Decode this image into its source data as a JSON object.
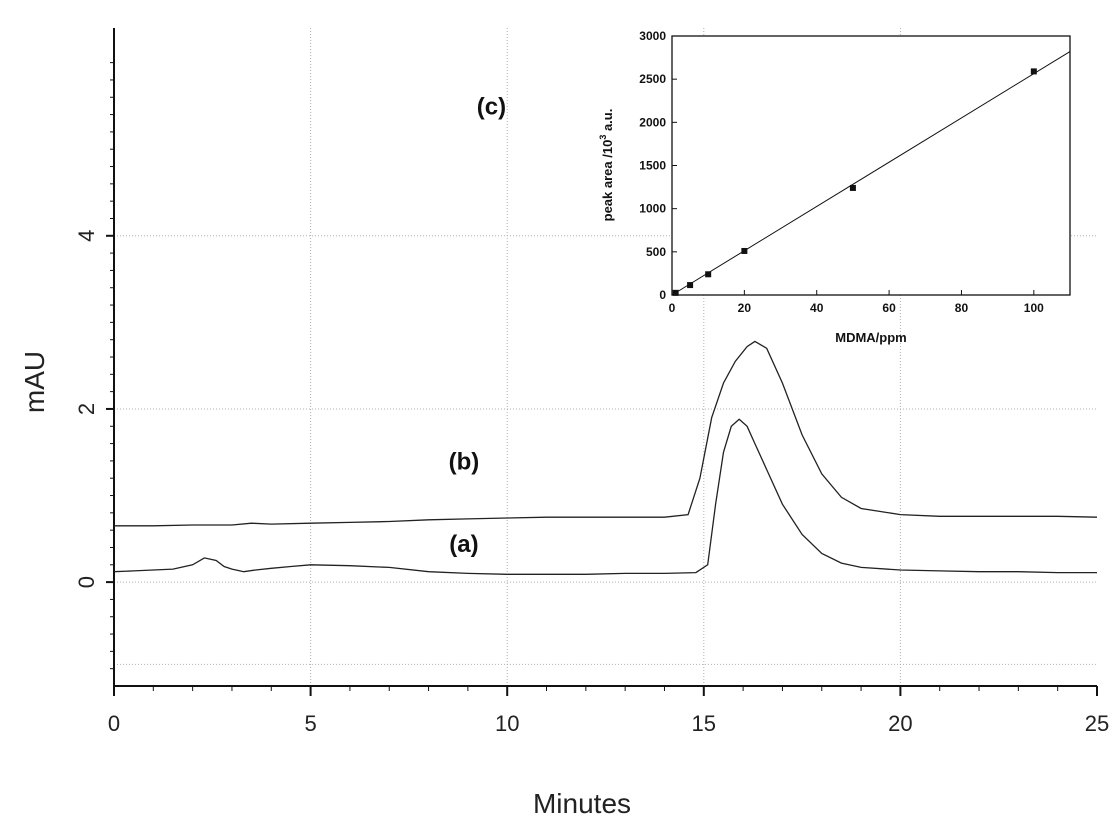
{
  "chart_data": [
    {
      "type": "line",
      "xlabel": "Minutes",
      "ylabel": "mAU",
      "xlim": [
        0,
        25
      ],
      "ylim": [
        -1.2,
        6.4
      ],
      "x_ticks": [
        0,
        5,
        10,
        15,
        20,
        25
      ],
      "x_tick_labels": [
        "0",
        "5",
        "10",
        "15",
        "20",
        "25"
      ],
      "y_ticks": [
        0,
        2,
        4
      ],
      "y_tick_labels": [
        "0",
        "2",
        "4"
      ],
      "grid": true,
      "trace_labels": [
        {
          "text": "(a)",
          "x": 8.9,
          "y": 0.35
        },
        {
          "text": "(b)",
          "x": 8.9,
          "y": 1.3
        },
        {
          "text": "(c)",
          "x": 9.6,
          "y": 5.4
        }
      ],
      "series": [
        {
          "name": "(a)",
          "x": [
            0,
            0.5,
            1,
            1.5,
            2,
            2.3,
            2.6,
            2.8,
            3.0,
            3.3,
            3.6,
            4.0,
            4.5,
            5.0,
            6.0,
            7.0,
            8.0,
            9.0,
            10.0,
            11.0,
            12.0,
            13.0,
            14.0,
            14.8,
            15.1,
            15.3,
            15.5,
            15.7,
            15.9,
            16.1,
            16.3,
            16.6,
            17.0,
            17.5,
            18.0,
            18.5,
            19.0,
            20.0,
            21.0,
            22.0,
            23.0,
            24.0,
            25.0
          ],
          "y": [
            0.12,
            0.13,
            0.14,
            0.15,
            0.2,
            0.28,
            0.25,
            0.18,
            0.15,
            0.12,
            0.14,
            0.16,
            0.18,
            0.2,
            0.19,
            0.17,
            0.12,
            0.1,
            0.09,
            0.09,
            0.09,
            0.1,
            0.1,
            0.11,
            0.2,
            0.9,
            1.5,
            1.8,
            1.88,
            1.8,
            1.6,
            1.3,
            0.9,
            0.55,
            0.33,
            0.22,
            0.17,
            0.14,
            0.13,
            0.12,
            0.12,
            0.11,
            0.11
          ]
        },
        {
          "name": "(b)",
          "x": [
            0,
            1,
            2,
            3,
            3.5,
            4.0,
            5.0,
            6.0,
            7.0,
            8.0,
            9.0,
            10.0,
            11.0,
            12.0,
            13.0,
            14.0,
            14.6,
            14.9,
            15.2,
            15.5,
            15.8,
            16.1,
            16.3,
            16.6,
            17.0,
            17.5,
            18.0,
            18.5,
            19.0,
            20.0,
            21.0,
            22.0,
            23.0,
            24.0,
            25.0
          ],
          "y": [
            0.65,
            0.65,
            0.66,
            0.66,
            0.68,
            0.67,
            0.68,
            0.69,
            0.7,
            0.72,
            0.73,
            0.74,
            0.75,
            0.75,
            0.75,
            0.75,
            0.78,
            1.2,
            1.9,
            2.3,
            2.55,
            2.72,
            2.78,
            2.7,
            2.3,
            1.7,
            1.25,
            0.98,
            0.85,
            0.78,
            0.76,
            0.76,
            0.76,
            0.76,
            0.75
          ]
        }
      ]
    },
    {
      "type": "scatter",
      "xlabel": "MDMA/ppm",
      "ylabel_parts": [
        "peak area /10",
        "3",
        " a.u."
      ],
      "xlim": [
        0,
        110
      ],
      "ylim": [
        0,
        3000
      ],
      "x_ticks": [
        0,
        20,
        40,
        60,
        80,
        100
      ],
      "y_ticks": [
        0,
        500,
        1000,
        1500,
        2000,
        2500,
        3000
      ],
      "points": {
        "x": [
          1,
          5,
          10,
          20,
          50,
          100
        ],
        "y": [
          25,
          115,
          240,
          510,
          1240,
          2590
        ]
      },
      "fit_line": {
        "x": [
          0,
          110
        ],
        "y": [
          0,
          2820
        ]
      }
    }
  ]
}
